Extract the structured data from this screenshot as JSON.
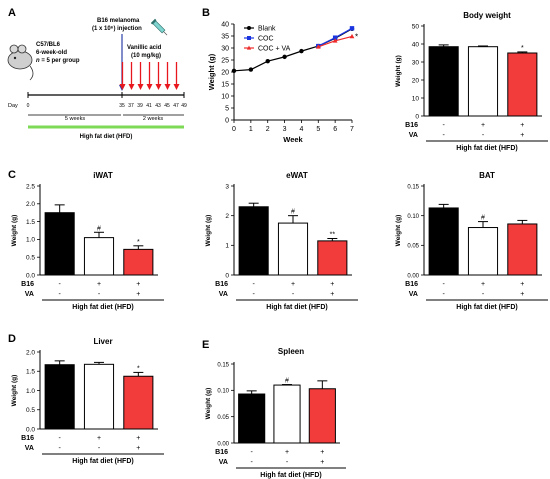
{
  "panels": {
    "A": {
      "label": "A",
      "mouse_line1": "C57/BL6",
      "mouse_line2": "6-week-old",
      "mouse_line3_n": "n",
      "mouse_line3_rest": " = 5 per group",
      "injection_line1": "B16 melanoma",
      "injection_line2": "(1 x 10⁶) injection",
      "treatment_line1": "Vanillic acid",
      "treatment_line2": "(10 mg/kg)",
      "day_label": "Day",
      "days": [
        "0",
        "35",
        "37",
        "39",
        "41",
        "43",
        "45",
        "47",
        "49"
      ],
      "period1": "5 weeks",
      "period2": "2 weeks",
      "diet_label": "High fat diet (HFD)",
      "diet_color": "#7ed957",
      "arrow_color_injection": "#2d3ea8",
      "arrow_color_treatment": "#e8171e"
    },
    "B": {
      "label": "B"
    },
    "C": {
      "label": "C"
    },
    "D": {
      "label": "D"
    },
    "E": {
      "label": "E"
    }
  },
  "colors": {
    "blank": "#000000",
    "coc": "#ffffff",
    "coc_va": "#f23b3b",
    "line_coc": "#1a35e0",
    "line_va": "#ee2b2b"
  },
  "row_labels": {
    "b16": "B16",
    "va": "VA"
  },
  "signs": {
    "minus": "-",
    "plus": "+"
  },
  "footer": "High fat diet (HFD)",
  "chart_data": [
    {
      "panel": "B",
      "type": "line",
      "title": "",
      "xlabel": "Week",
      "ylabel": "Weight (g)",
      "xlim": [
        0,
        7
      ],
      "ylim": [
        0,
        40
      ],
      "x_ticks": [
        "0",
        "1",
        "2",
        "3",
        "4",
        "5",
        "6",
        "7"
      ],
      "y_ticks": [
        "0",
        "5",
        "10",
        "15",
        "20",
        "25",
        "30",
        "35",
        "40"
      ],
      "legend_position": "top-left",
      "annotations": [
        "*"
      ],
      "series": [
        {
          "name": "Blank",
          "x": [
            0,
            1,
            2,
            3,
            4,
            5,
            6,
            7
          ],
          "y": [
            20.5,
            21.0,
            24.5,
            26.3,
            28.7,
            30.8,
            34.0,
            38.0
          ]
        },
        {
          "name": "COC",
          "x": [
            5,
            6,
            7
          ],
          "y": [
            30.8,
            34.3,
            38.2
          ]
        },
        {
          "name": "COC + VA",
          "x": [
            5,
            6,
            7
          ],
          "y": [
            30.5,
            33.0,
            34.8
          ]
        }
      ]
    },
    {
      "panel": "B",
      "type": "bar",
      "title": "Body weight",
      "ylabel": "Weight (g)",
      "ylim": [
        0,
        50
      ],
      "y_ticks": [
        "0",
        "10",
        "20",
        "30",
        "40",
        "50"
      ],
      "values": [
        38.5,
        38.5,
        35.0
      ],
      "errors": [
        1.0,
        0.4,
        0.6
      ],
      "b16": [
        "-",
        "+",
        "+"
      ],
      "va": [
        "-",
        "-",
        "+"
      ],
      "annotations": [
        "",
        "",
        "*"
      ]
    },
    {
      "panel": "C",
      "type": "bar",
      "title": "iWAT",
      "ylabel": "Weight (g)",
      "ylim": [
        0,
        2.5
      ],
      "y_ticks": [
        "0.0",
        "0.5",
        "1.0",
        "1.5",
        "2.0",
        "2.5"
      ],
      "values": [
        1.75,
        1.05,
        0.72
      ],
      "errors": [
        0.22,
        0.15,
        0.1
      ],
      "b16": [
        "-",
        "+",
        "+"
      ],
      "va": [
        "-",
        "-",
        "+"
      ],
      "annotations": [
        "",
        "#",
        "*"
      ]
    },
    {
      "panel": "C",
      "type": "bar",
      "title": "eWAT",
      "ylabel": "Weight (g)",
      "ylim": [
        0,
        3
      ],
      "y_ticks": [
        "0",
        "1",
        "2",
        "3"
      ],
      "values": [
        2.3,
        1.75,
        1.15
      ],
      "errors": [
        0.12,
        0.25,
        0.08
      ],
      "b16": [
        "-",
        "+",
        "+"
      ],
      "va": [
        "-",
        "-",
        "+"
      ],
      "annotations": [
        "",
        "#",
        "**"
      ]
    },
    {
      "panel": "C",
      "type": "bar",
      "title": "BAT",
      "ylabel": "Weight (g)",
      "ylim": [
        0,
        0.15
      ],
      "y_ticks": [
        "0.00",
        "0.05",
        "0.10",
        "0.15"
      ],
      "values": [
        0.113,
        0.08,
        0.086
      ],
      "errors": [
        0.006,
        0.01,
        0.006
      ],
      "b16": [
        "-",
        "+",
        "+"
      ],
      "va": [
        "-",
        "-",
        "+"
      ],
      "annotations": [
        "",
        "#",
        ""
      ]
    },
    {
      "panel": "D",
      "type": "bar",
      "title": "Liver",
      "ylabel": "Weight (g)",
      "ylim": [
        0,
        2.0
      ],
      "y_ticks": [
        "0.0",
        "0.5",
        "1.0",
        "1.5",
        "2.0"
      ],
      "values": [
        1.67,
        1.68,
        1.37
      ],
      "errors": [
        0.1,
        0.05,
        0.1
      ],
      "b16": [
        "-",
        "+",
        "+"
      ],
      "va": [
        "-",
        "-",
        "+"
      ],
      "annotations": [
        "",
        "",
        "*"
      ]
    },
    {
      "panel": "E",
      "type": "bar",
      "title": "Spleen",
      "ylabel": "Weight (g)",
      "ylim": [
        0,
        0.15
      ],
      "y_ticks": [
        "0.00",
        "0.05",
        "0.10",
        "0.15"
      ],
      "values": [
        0.093,
        0.11,
        0.103
      ],
      "errors": [
        0.006,
        0.001,
        0.015
      ],
      "b16": [
        "-",
        "+",
        "+"
      ],
      "va": [
        "-",
        "-",
        "+"
      ],
      "annotations": [
        "",
        "#",
        ""
      ]
    }
  ]
}
